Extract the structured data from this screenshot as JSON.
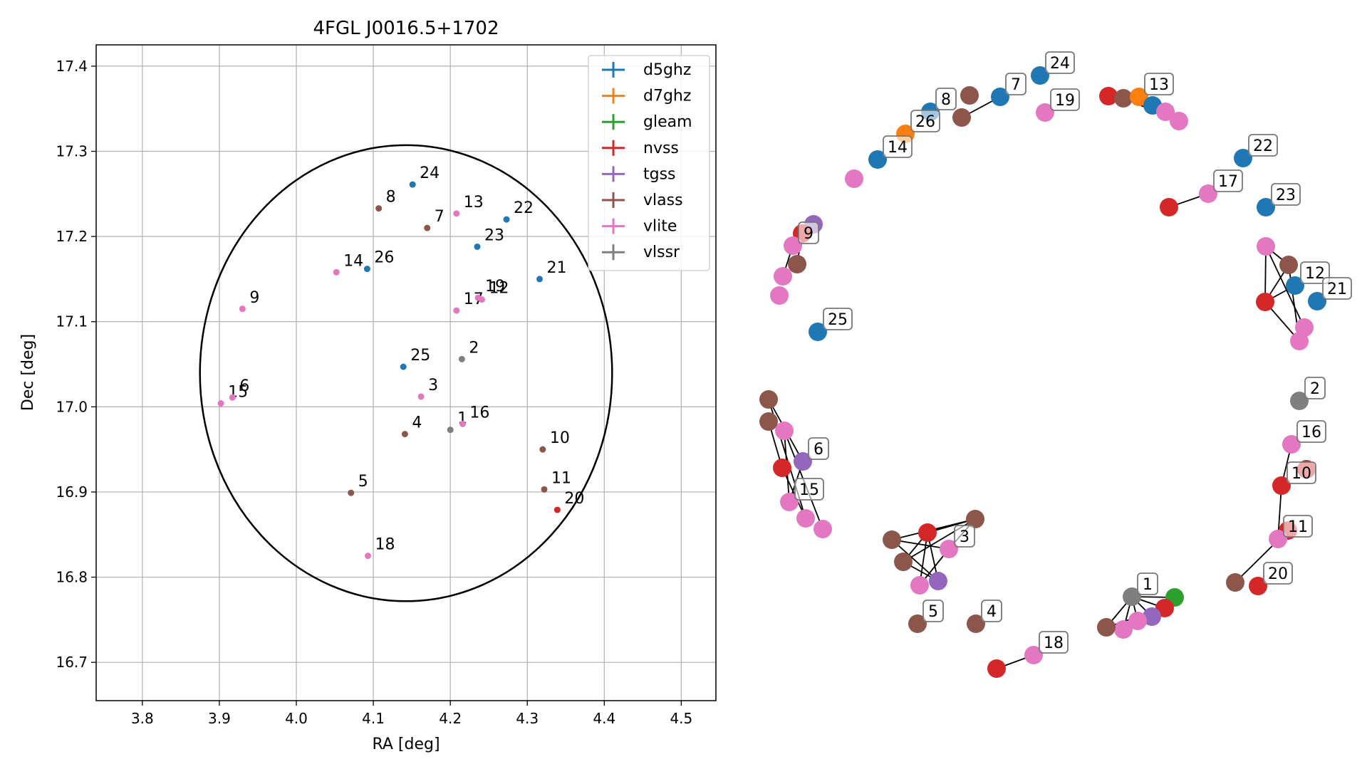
{
  "chart_data": [
    {
      "type": "scatter",
      "title": "4FGL J0016.5+1702",
      "xlabel": "RA [deg]",
      "ylabel": "Dec [deg]",
      "xlim": [
        3.74,
        4.545
      ],
      "ylim": [
        16.655,
        17.425
      ],
      "xticks": [
        "3.8",
        "3.9",
        "4.0",
        "4.1",
        "4.2",
        "4.3",
        "4.4",
        "4.5"
      ],
      "yticks": [
        "16.7",
        "16.8",
        "16.9",
        "17.0",
        "17.1",
        "17.2",
        "17.3",
        "17.4"
      ],
      "grid": true,
      "legend_position": "top-right",
      "circle": {
        "center": [
          4.1425,
          17.0395
        ],
        "radius": 0.2677
      },
      "series": [
        {
          "name": "d5ghz",
          "color": "#1f77b4"
        },
        {
          "name": "d7ghz",
          "color": "#ff7f0e"
        },
        {
          "name": "gleam",
          "color": "#2ca02c"
        },
        {
          "name": "nvss",
          "color": "#d62728"
        },
        {
          "name": "tgss",
          "color": "#9467bd"
        },
        {
          "name": "vlass",
          "color": "#8c564b"
        },
        {
          "name": "vlite",
          "color": "#e377c2"
        },
        {
          "name": "vlssr",
          "color": "#7f7f7f"
        }
      ],
      "points": [
        {
          "label": "24",
          "x": 4.151,
          "y": 17.261,
          "series": "d5ghz"
        },
        {
          "label": "8",
          "x": 4.107,
          "y": 17.233,
          "series": "vlass"
        },
        {
          "label": "7",
          "x": 4.17,
          "y": 17.21,
          "series": "vlass"
        },
        {
          "label": "13",
          "x": 4.208,
          "y": 17.227,
          "series": "vlite"
        },
        {
          "label": "22",
          "x": 4.273,
          "y": 17.22,
          "series": "d5ghz"
        },
        {
          "label": "23",
          "x": 4.235,
          "y": 17.188,
          "series": "d5ghz"
        },
        {
          "label": "14",
          "x": 4.052,
          "y": 17.158,
          "series": "vlite"
        },
        {
          "label": "26",
          "x": 4.092,
          "y": 17.162,
          "series": "d5ghz"
        },
        {
          "label": "21",
          "x": 4.316,
          "y": 17.15,
          "series": "d5ghz"
        },
        {
          "label": "9",
          "x": 3.93,
          "y": 17.115,
          "series": "vlite"
        },
        {
          "label": "17",
          "x": 4.208,
          "y": 17.113,
          "series": "vlite"
        },
        {
          "label": "19",
          "x": 4.236,
          "y": 17.128,
          "series": "vlite"
        },
        {
          "label": "12",
          "x": 4.241,
          "y": 17.126,
          "series": "vlite"
        },
        {
          "label": "25",
          "x": 4.139,
          "y": 17.047,
          "series": "d5ghz"
        },
        {
          "label": "2",
          "x": 4.215,
          "y": 17.056,
          "series": "vlssr"
        },
        {
          "label": "3",
          "x": 4.162,
          "y": 17.012,
          "series": "vlite"
        },
        {
          "label": "15",
          "x": 3.902,
          "y": 17.004,
          "series": "vlite"
        },
        {
          "label": "6",
          "x": 3.917,
          "y": 17.011,
          "series": "vlite"
        },
        {
          "label": "4",
          "x": 4.141,
          "y": 16.968,
          "series": "vlass"
        },
        {
          "label": "1",
          "x": 4.2,
          "y": 16.973,
          "series": "vlssr"
        },
        {
          "label": "16",
          "x": 4.216,
          "y": 16.98,
          "series": "vlite"
        },
        {
          "label": "10",
          "x": 4.32,
          "y": 16.95,
          "series": "vlass"
        },
        {
          "label": "5",
          "x": 4.071,
          "y": 16.899,
          "series": "vlass"
        },
        {
          "label": "11",
          "x": 4.322,
          "y": 16.903,
          "series": "vlass"
        },
        {
          "label": "20",
          "x": 4.339,
          "y": 16.879,
          "series": "nvss"
        },
        {
          "label": "18",
          "x": 4.093,
          "y": 16.825,
          "series": "vlite"
        }
      ]
    },
    {
      "type": "network",
      "node_labels": [
        "1",
        "2",
        "3",
        "4",
        "5",
        "6",
        "7",
        "8",
        "9",
        "10",
        "11",
        "12",
        "13",
        "14",
        "15",
        "16",
        "17",
        "18",
        "19",
        "20",
        "21",
        "22",
        "23",
        "24",
        "25",
        "26"
      ]
    }
  ]
}
